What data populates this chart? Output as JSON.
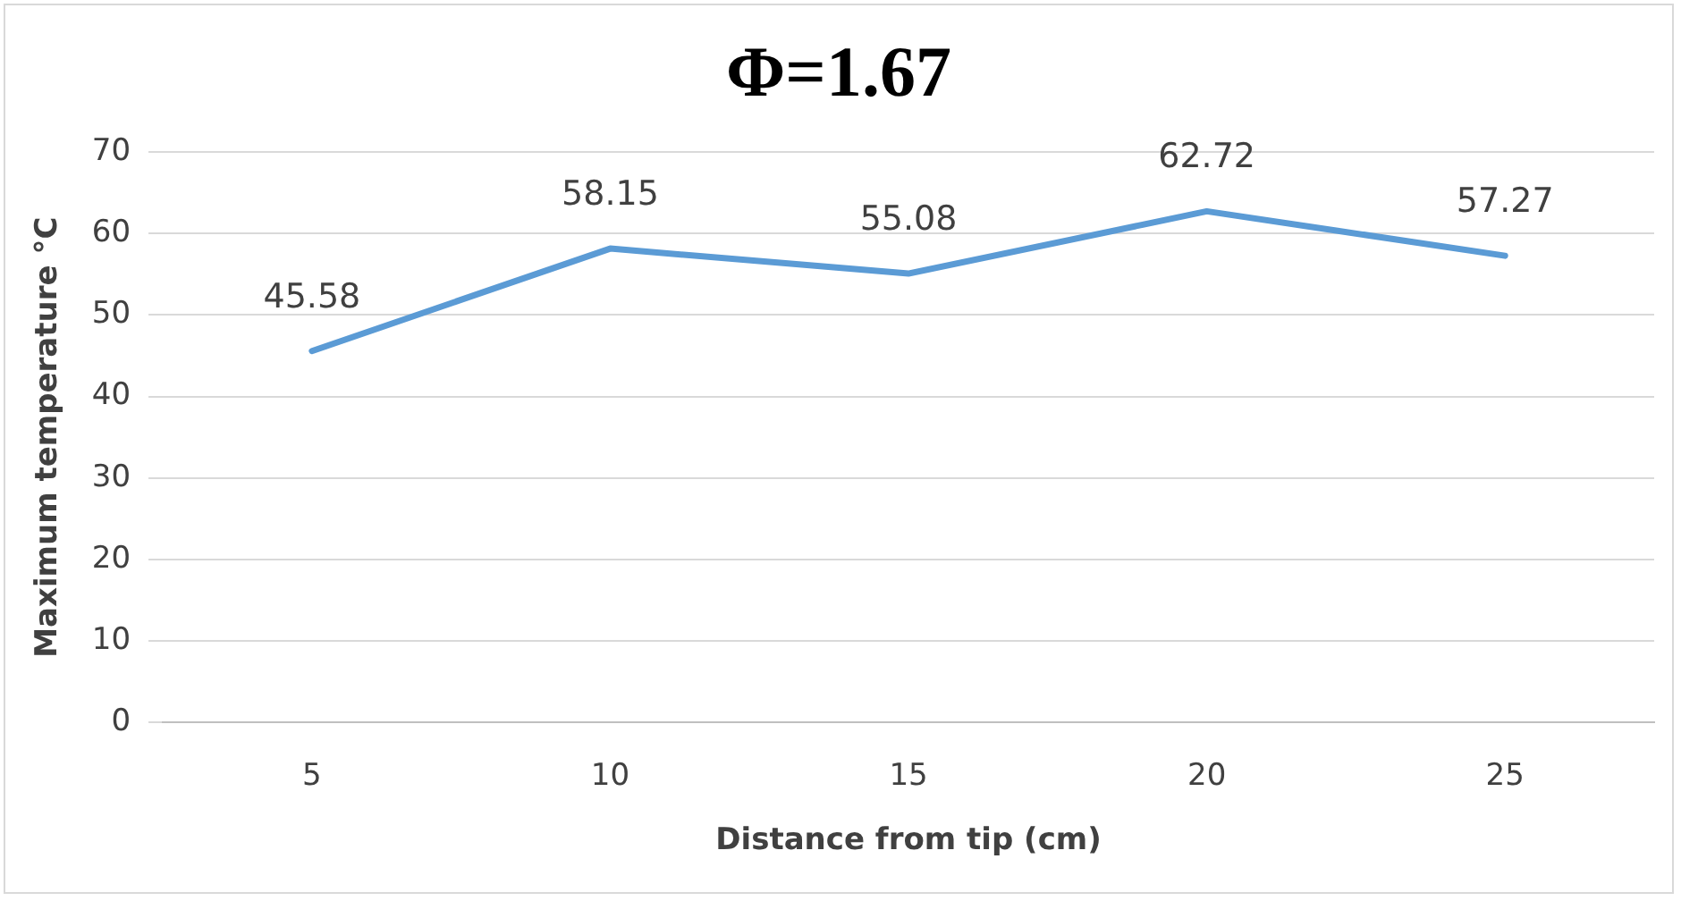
{
  "chart_data": {
    "type": "line",
    "title": "Φ=1.67",
    "xlabel": "Distance from tip (cm)",
    "ylabel": "Maximum temperature °C",
    "categories": [
      "5",
      "10",
      "15",
      "20",
      "25"
    ],
    "series": [
      {
        "color": "#5b9bd5",
        "values": [
          45.58,
          58.15,
          55.08,
          62.72,
          57.27
        ]
      }
    ],
    "ylim": [
      0,
      70
    ],
    "yticks": [
      0,
      10,
      20,
      30,
      40,
      50,
      60,
      70
    ],
    "grid": "y",
    "legend": false,
    "marker": "none",
    "line_style": "solid",
    "data_labels": true
  }
}
